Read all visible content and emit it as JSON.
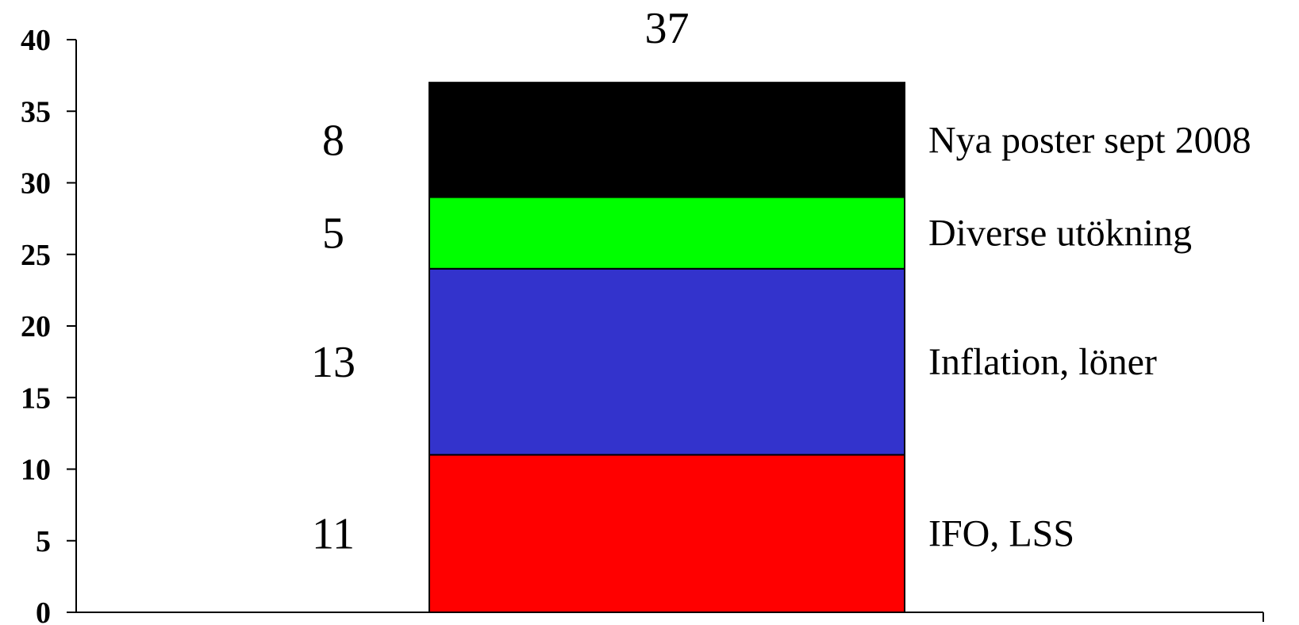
{
  "chart_data": {
    "type": "bar",
    "stacked": true,
    "categories": [
      ""
    ],
    "series": [
      {
        "name": "IFO, LSS",
        "values": [
          11
        ],
        "color": "#ff0000",
        "label": "11"
      },
      {
        "name": "Inflation, löner",
        "values": [
          13
        ],
        "color": "#3333cc",
        "label": "13"
      },
      {
        "name": "Diverse utökning",
        "values": [
          5
        ],
        "color": "#00ff00",
        "label": "5"
      },
      {
        "name": "Nya poster sept 2008",
        "values": [
          8
        ],
        "color": "#000000",
        "label": "8"
      }
    ],
    "total_label": "37",
    "ylim": [
      0,
      40
    ],
    "yticks": [
      "0",
      "5",
      "10",
      "15",
      "20",
      "25",
      "30",
      "35",
      "40"
    ],
    "title": "",
    "xlabel": "",
    "ylabel": "",
    "grid": false,
    "legend": "right, beside segments"
  }
}
